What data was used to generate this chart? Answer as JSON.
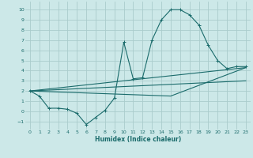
{
  "xlabel": "Humidex (Indice chaleur)",
  "bg_color": "#cce8e8",
  "grid_color": "#aacccc",
  "line_color": "#1a6b6b",
  "xlim": [
    -0.5,
    23.5
  ],
  "ylim": [
    -1.8,
    10.8
  ],
  "xticks": [
    0,
    1,
    2,
    3,
    4,
    5,
    6,
    7,
    8,
    9,
    10,
    11,
    12,
    13,
    14,
    15,
    16,
    17,
    18,
    19,
    20,
    21,
    22,
    23
  ],
  "yticks": [
    -1,
    0,
    1,
    2,
    3,
    4,
    5,
    6,
    7,
    8,
    9,
    10
  ],
  "series1_x": [
    0,
    1,
    2,
    3,
    4,
    5,
    6,
    7,
    8,
    9,
    10,
    11,
    12,
    13,
    14,
    15,
    16,
    17,
    18,
    19,
    20,
    21,
    22,
    23
  ],
  "series1_y": [
    2.0,
    1.5,
    0.3,
    0.3,
    0.2,
    -0.2,
    -1.3,
    -0.6,
    0.1,
    1.3,
    6.8,
    3.2,
    3.3,
    7.0,
    9.0,
    10.0,
    10.0,
    9.5,
    8.5,
    6.5,
    5.0,
    4.2,
    4.4,
    4.4
  ],
  "series2_x": [
    0,
    23
  ],
  "series2_y": [
    2.0,
    3.0
  ],
  "series3_x": [
    0,
    15,
    23
  ],
  "series3_y": [
    2.0,
    1.5,
    4.3
  ],
  "series4_x": [
    0,
    23
  ],
  "series4_y": [
    2.0,
    4.3
  ]
}
